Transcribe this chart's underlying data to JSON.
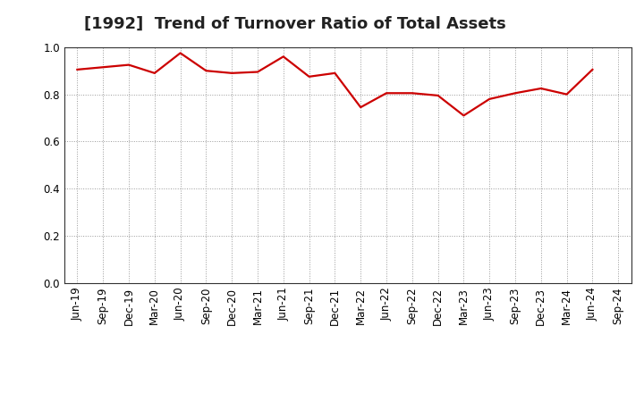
{
  "title": "[1992]  Trend of Turnover Ratio of Total Assets",
  "labels": [
    "Jun-19",
    "Sep-19",
    "Dec-19",
    "Mar-20",
    "Jun-20",
    "Sep-20",
    "Dec-20",
    "Mar-21",
    "Jun-21",
    "Sep-21",
    "Dec-21",
    "Mar-22",
    "Jun-22",
    "Sep-22",
    "Dec-22",
    "Mar-23",
    "Jun-23",
    "Sep-23",
    "Dec-23",
    "Mar-24",
    "Jun-24",
    "Sep-24"
  ],
  "values": [
    0.905,
    0.915,
    0.925,
    0.89,
    0.975,
    0.9,
    0.89,
    0.895,
    0.96,
    0.875,
    0.89,
    0.745,
    0.805,
    0.805,
    0.795,
    0.71,
    0.78,
    0.805,
    0.825,
    0.8,
    0.905,
    null
  ],
  "line_color": "#cc0000",
  "line_width": 1.6,
  "background_color": "#ffffff",
  "grid_color": "#999999",
  "ylim": [
    0.0,
    1.0
  ],
  "yticks": [
    0.0,
    0.2,
    0.4,
    0.6,
    0.8,
    1.0
  ],
  "title_fontsize": 13,
  "tick_fontsize": 8.5
}
